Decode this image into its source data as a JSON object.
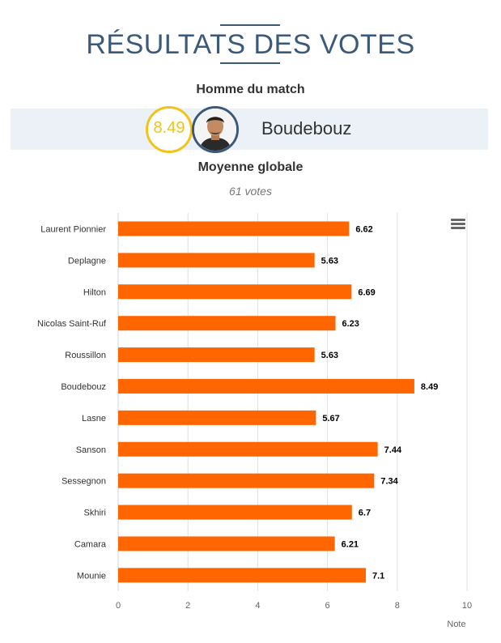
{
  "header": {
    "title": "RÉSULTATS DES VOTES",
    "motm_label": "Homme du match",
    "motm_score": "8.49",
    "motm_name": "Boudebouz",
    "average_label": "Moyenne globale",
    "votes": "61 votes"
  },
  "colors": {
    "bar": "#ff6600",
    "accent_blue": "#3b5a7a",
    "score_yellow": "#f0c419",
    "band": "#ecf1f7"
  },
  "icons": {
    "menu": "hamburger-menu-icon",
    "avatar": "player-avatar"
  },
  "chart_data": {
    "type": "bar",
    "orientation": "horizontal",
    "categories": [
      "Laurent Pionnier",
      "Deplagne",
      "Hilton",
      "Nicolas Saint-Ruf",
      "Roussillon",
      "Boudebouz",
      "Lasne",
      "Sanson",
      "Sessegnon",
      "Skhiri",
      "Camara",
      "Mounie"
    ],
    "values": [
      6.62,
      5.63,
      6.69,
      6.23,
      5.63,
      8.49,
      5.67,
      7.44,
      7.34,
      6.7,
      6.21,
      7.1
    ],
    "data_labels": [
      "6.62",
      "5.63",
      "6.69",
      "6.23",
      "5.63",
      "8.49",
      "5.67",
      "7.44",
      "7.34",
      "6.7",
      "6.21",
      "7.1"
    ],
    "xlim": [
      0,
      10
    ],
    "ticks": [
      0,
      2,
      4,
      6,
      8,
      10
    ],
    "tick_labels": [
      "0",
      "2",
      "4",
      "6",
      "8",
      "10"
    ],
    "xlabel": "Note",
    "grid": true
  }
}
